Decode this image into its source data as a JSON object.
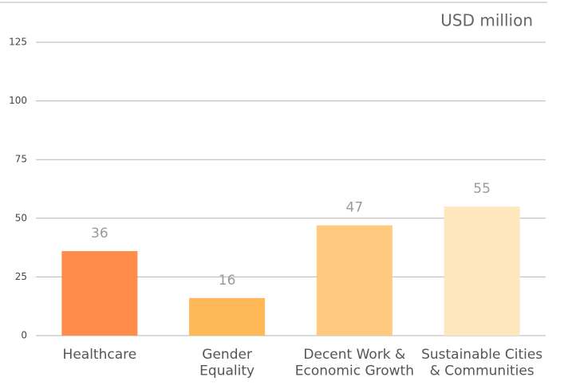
{
  "chart_data": {
    "type": "bar",
    "unit_label": "USD million",
    "categories": [
      "Healthcare",
      "Gender\nEquality",
      "Decent Work &\nEconomic Growth",
      "Sustainable Cities\n& Communities"
    ],
    "values": [
      36,
      16,
      47,
      55
    ],
    "colors": [
      "#ff8c4b",
      "#ffb857",
      "#ffca80",
      "#ffe7bd"
    ],
    "ylim": [
      0,
      125
    ],
    "yticks": [
      0,
      25,
      50,
      75,
      100,
      125
    ],
    "grid": true
  }
}
